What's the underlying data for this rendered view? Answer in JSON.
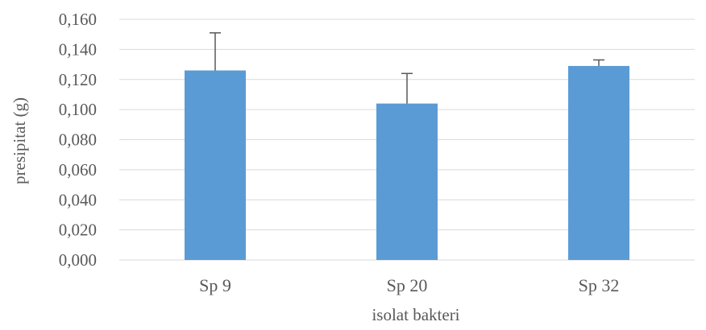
{
  "chart_data": {
    "type": "bar",
    "title": "",
    "xlabel": "isolat bakteri",
    "ylabel": "presipitat (g)",
    "categories": [
      "Sp 9",
      "Sp 20",
      "Sp 32"
    ],
    "values": [
      0.126,
      0.104,
      0.129
    ],
    "error_bars": [
      0.025,
      0.02,
      0.004
    ],
    "ylim": [
      0,
      0.16
    ],
    "yticks": [
      0,
      0.02,
      0.04,
      0.06,
      0.08,
      0.1,
      0.12,
      0.14,
      0.16
    ],
    "ytick_labels": [
      "0,000",
      "0,020",
      "0,040",
      "0,060",
      "0,080",
      "0,100",
      "0,120",
      "0,140",
      "0,160"
    ],
    "grid": true,
    "legend": "none",
    "bar_color": "#5b9bd5",
    "error_bar_color": "#595959",
    "grid_color": "#d9d9d9"
  }
}
